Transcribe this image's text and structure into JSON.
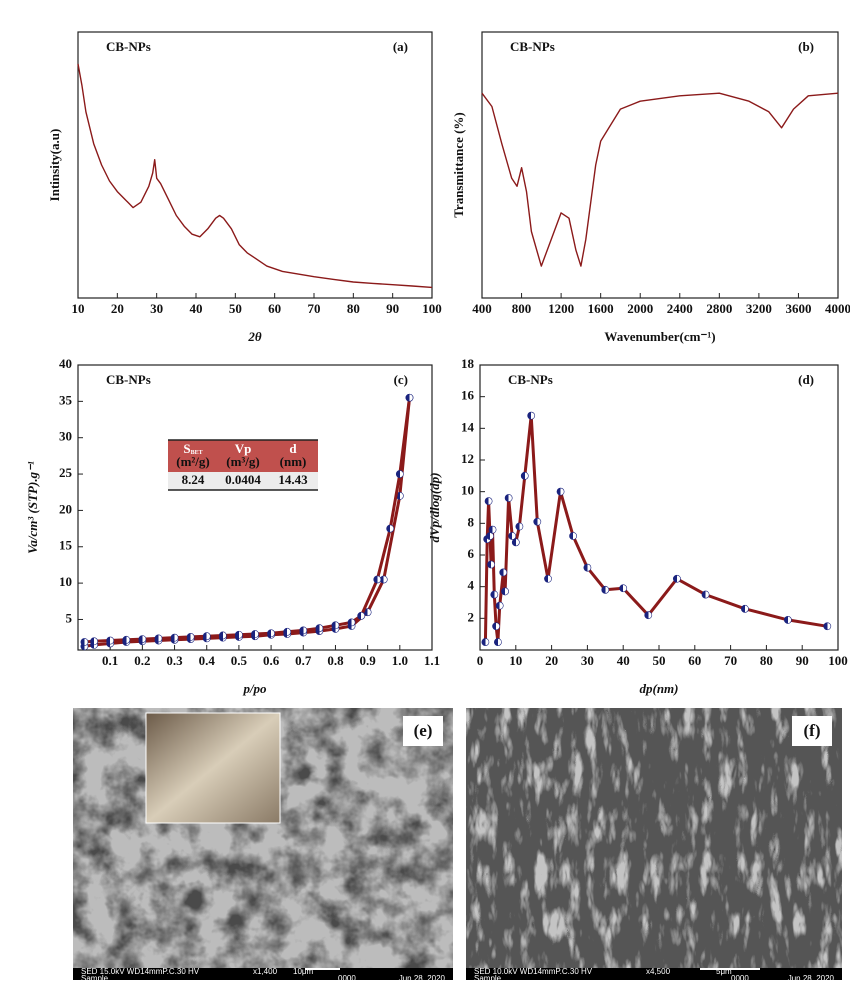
{
  "chart_data": [
    {
      "type": "line",
      "label": "CB-NPs",
      "panel": "(a)",
      "xlabel": "2θ",
      "ylabel": "Intinsity(a.u)",
      "xlim": [
        10,
        100
      ],
      "xticks": [
        10,
        20,
        30,
        40,
        50,
        60,
        70,
        80,
        90,
        100
      ],
      "ylim": [
        0,
        100
      ],
      "series": [
        {
          "color": "#8b1a1a",
          "x": [
            10,
            11,
            12,
            14,
            16,
            18,
            20,
            22,
            24,
            26,
            28,
            29,
            29.5,
            30,
            31,
            33,
            35,
            37,
            39,
            41,
            43,
            45,
            46,
            47,
            49,
            51,
            53,
            55,
            58,
            62,
            66,
            70,
            75,
            80,
            85,
            90,
            95,
            100
          ],
          "values": [
            88,
            80,
            70,
            58,
            50,
            44,
            40,
            37,
            34,
            36,
            42,
            47,
            52,
            45,
            43,
            37,
            31,
            27,
            24,
            23,
            26,
            30,
            31,
            30,
            26,
            20,
            17,
            15,
            12,
            10,
            9,
            8,
            7,
            6,
            5.5,
            5,
            4.5,
            4
          ]
        }
      ]
    },
    {
      "type": "line",
      "label": "CB-NPs",
      "panel": "(b)",
      "xlabel": "Wavenumber(cm⁻¹)",
      "ylabel": "Transmittance (%)",
      "xlim": [
        400,
        4000
      ],
      "xticks": [
        400,
        800,
        1200,
        1600,
        2000,
        2400,
        2800,
        3200,
        3600,
        4000
      ],
      "ylim": [
        0,
        100
      ],
      "series": [
        {
          "color": "#8b1a1a",
          "x": [
            400,
            500,
            600,
            700,
            754,
            800,
            850,
            900,
            1000,
            1100,
            1200,
            1280,
            1350,
            1400,
            1450,
            1550,
            1600,
            1800,
            2000,
            2400,
            2800,
            3100,
            3300,
            3430,
            3550,
            3700,
            4000
          ],
          "values": [
            77,
            72,
            58,
            45,
            42,
            49,
            40,
            25,
            12,
            22,
            32,
            30,
            18,
            12,
            22,
            50,
            59,
            71,
            74,
            76,
            77,
            74,
            70,
            64,
            71,
            76,
            77
          ]
        }
      ]
    },
    {
      "type": "line",
      "label": "CB-NPs",
      "panel": "(c)",
      "xlabel": "p/po",
      "ylabel": "Va/cm³ (STP).g⁻¹",
      "xlim": [
        0,
        1.1
      ],
      "xticks": [
        0.1,
        0.2,
        0.3,
        0.4,
        0.5,
        0.6,
        0.7,
        0.8,
        0.9,
        {
          "value": 1,
          "label": "1.0"
        },
        1.1
      ],
      "ylim": [
        0.8,
        40
      ],
      "yticks": [
        5,
        10,
        15,
        20,
        25,
        30,
        35,
        40
      ],
      "marker": true,
      "series": [
        {
          "color": "#8b1a1a",
          "x": [
            0.02,
            0.05,
            0.1,
            0.15,
            0.2,
            0.25,
            0.3,
            0.35,
            0.4,
            0.45,
            0.5,
            0.55,
            0.6,
            0.65,
            0.7,
            0.75,
            0.8,
            0.85,
            0.9,
            0.95,
            1.0,
            1.03
          ],
          "values": [
            1.3,
            1.5,
            1.7,
            1.9,
            2.0,
            2.1,
            2.2,
            2.3,
            2.4,
            2.5,
            2.6,
            2.7,
            2.9,
            3.0,
            3.2,
            3.4,
            3.7,
            4.1,
            6.0,
            10.5,
            22,
            35.5
          ]
        },
        {
          "color": "#8b1a1a",
          "x": [
            1.03,
            1.0,
            0.97,
            0.93,
            0.88,
            0.85,
            0.8,
            0.75,
            0.7,
            0.65,
            0.6,
            0.55,
            0.5,
            0.45,
            0.4,
            0.35,
            0.3,
            0.25,
            0.2,
            0.15,
            0.1,
            0.05,
            0.02
          ],
          "values": [
            35.5,
            25,
            17.5,
            10.5,
            5.5,
            4.6,
            4.2,
            3.8,
            3.5,
            3.3,
            3.1,
            3.0,
            2.9,
            2.8,
            2.7,
            2.6,
            2.5,
            2.4,
            2.3,
            2.2,
            2.1,
            2.0,
            1.9
          ]
        }
      ],
      "table": {
        "headers": [
          {
            "text": "S",
            "sub": "BET",
            "unit": "(m²/g)"
          },
          {
            "text": "Vp",
            "unit": "(m³/g)"
          },
          {
            "text": "d",
            "unit": "(nm)"
          }
        ],
        "rows": [
          [
            8.24,
            0.0404,
            14.43
          ]
        ]
      }
    },
    {
      "type": "line",
      "label": "CB-NPs",
      "panel": "(d)",
      "xlabel": "dp(nm)",
      "ylabel": "dVp/dlog(dp)",
      "xlim": [
        0,
        100
      ],
      "xticks": [
        0,
        10,
        20,
        30,
        40,
        50,
        60,
        70,
        80,
        90,
        100
      ],
      "ylim": [
        0,
        18
      ],
      "yticks": [
        2,
        4,
        6,
        8,
        10,
        12,
        14,
        16,
        18
      ],
      "marker": true,
      "series": [
        {
          "color": "#8b1a1a",
          "x": [
            1.5,
            2,
            2.4,
            2.8,
            3.1,
            3.5,
            4,
            4.5,
            5,
            5.5,
            6.5,
            7,
            8,
            9,
            10,
            11,
            12.5,
            14.3,
            16,
            19,
            22.5,
            26,
            30,
            35,
            40,
            47,
            55,
            63,
            74,
            86,
            97
          ],
          "values": [
            0.5,
            7,
            9.4,
            7.2,
            5.4,
            7.6,
            3.5,
            1.5,
            0.5,
            2.8,
            4.9,
            3.7,
            9.6,
            7.2,
            6.8,
            7.8,
            11,
            14.8,
            8.1,
            4.5,
            10,
            7.2,
            5.2,
            3.8,
            3.9,
            2.2,
            4.5,
            3.5,
            2.6,
            1.9,
            1.5
          ]
        }
      ]
    }
  ],
  "images": [
    {
      "panel": "(e)",
      "info": "SED 15.0kV WD14mmP.C.30 HV",
      "magnification": "x1,400",
      "scale": "10μm",
      "number": "0000",
      "date": "Jun 28, 2020",
      "sample": "Sample"
    },
    {
      "panel": "(f)",
      "info": "SED 10.0kV WD14mmP.C.30 HV",
      "magnification": "x4,500",
      "scale": "5μm",
      "number": "0000",
      "date": "Jun 28, 2020",
      "sample": "Sample"
    }
  ]
}
